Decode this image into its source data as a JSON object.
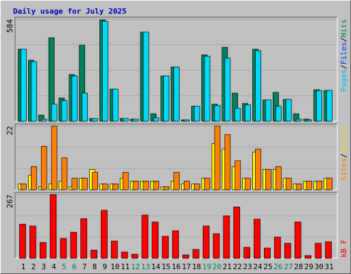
{
  "chart_data": {
    "type": "bar",
    "title": "Daily usage for July 2025",
    "categories": [
      "1",
      "2",
      "3",
      "4",
      "5",
      "6",
      "7",
      "8",
      "9",
      "10",
      "11",
      "12",
      "13",
      "14",
      "15",
      "16",
      "17",
      "18",
      "19",
      "20",
      "21",
      "22",
      "23",
      "24",
      "25",
      "26",
      "27",
      "28",
      "29",
      "30",
      "31"
    ],
    "category_colors": [
      "#000000",
      "#000000",
      "#000000",
      "#000000",
      "#00805c",
      "#00805c",
      "#000000",
      "#000000",
      "#000000",
      "#000000",
      "#000000",
      "#00805c",
      "#00805c",
      "#000000",
      "#000000",
      "#000000",
      "#000000",
      "#000000",
      "#00805c",
      "#00805c",
      "#000000",
      "#000000",
      "#000000",
      "#000000",
      "#000000",
      "#00805c",
      "#00805c",
      "#000000",
      "#000000",
      "#000000",
      "#000000"
    ],
    "panels": [
      {
        "ylim": [
          0,
          584
        ],
        "yticks": [
          584
        ],
        "legend": [
          {
            "text": "Pages",
            "color": "#00c0ff"
          },
          {
            "text": "/",
            "color": "#000000"
          },
          {
            "text": "Files",
            "color": "#0040ff"
          },
          {
            "text": "/",
            "color": "#000000"
          },
          {
            "text": "Hits",
            "color": "#00805c"
          }
        ],
        "series": [
          {
            "name": "Hits",
            "color": "#00805c",
            "values": [
              412,
              349,
              35,
              478,
              133,
              267,
              435,
              16,
              580,
              184,
              16,
              12,
              510,
              43,
              259,
              310,
              8,
              86,
              380,
              98,
              423,
              161,
              102,
              412,
              122,
              165,
              125,
              43,
              12,
              180,
              176
            ]
          },
          {
            "name": "Files",
            "color": "#00d8f8",
            "values": [
              412,
              341,
              12,
              98,
              118,
              259,
              161,
              16,
              572,
              184,
              16,
              12,
              510,
              20,
              259,
              310,
              8,
              86,
              372,
              90,
              361,
              74,
              94,
              404,
              122,
              86,
              125,
              12,
              8,
              176,
              176
            ]
          }
        ]
      },
      {
        "ylim": [
          0,
          22
        ],
        "yticks": [
          22
        ],
        "legend": [
          {
            "text": "Sites",
            "color": "#ff8000"
          },
          {
            "text": "/",
            "color": "#000000"
          },
          {
            "text": "Visits",
            "color": "#e8e800"
          }
        ],
        "series": [
          {
            "name": "Visits",
            "color": "#ffff00",
            "values": [
              2,
              5,
              1,
              2,
              3,
              1,
              4,
              7,
              2,
              2,
              4,
              3,
              3,
              3,
              1,
              3,
              2,
              2,
              4,
              16,
              14,
              8,
              4,
              13,
              7,
              7,
              4,
              2,
              3,
              3,
              4
            ]
          },
          {
            "name": "Sites",
            "color": "#ff8000",
            "values": [
              2,
              8,
              15,
              22,
              11,
              4,
              4,
              6,
              2,
              2,
              6,
              3,
              3,
              3,
              1,
              6,
              3,
              2,
              4,
              22,
              19,
              10,
              4,
              14,
              7,
              8,
              4,
              2,
              3,
              3,
              4
            ]
          }
        ]
      },
      {
        "ylim": [
          0,
          267
        ],
        "yticks": [
          267
        ],
        "legend": [
          {
            "text": "kB F",
            "color": "#ff0000"
          }
        ],
        "series": [
          {
            "name": "kB F",
            "color": "#ff0000",
            "values": [
              143,
              135,
              66,
              267,
              83,
              109,
              166,
              34,
              201,
              72,
              26,
              17,
              181,
              152,
              92,
              115,
              14,
              37,
              135,
              103,
              178,
              215,
              46,
              164,
              43,
              89,
              63,
              152,
              11,
              63,
              69
            ]
          }
        ]
      }
    ]
  }
}
